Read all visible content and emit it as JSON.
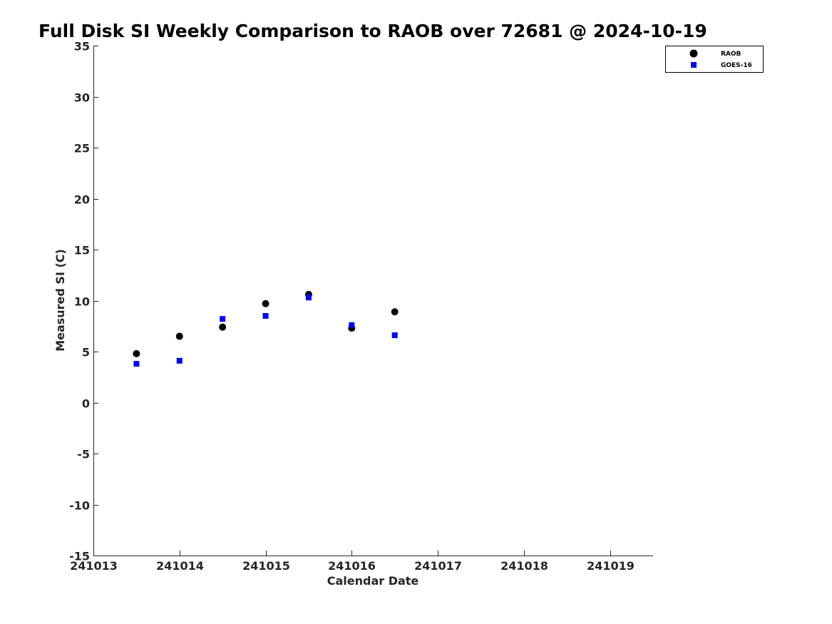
{
  "chart_data": {
    "type": "scatter",
    "title": "Full Disk SI Weekly Comparison to RAOB over 72681 @ 2024-10-19",
    "xlabel": "Calendar Date",
    "ylabel": "Measured SI (C)",
    "xlim": [
      "2024-10-13 00:00",
      "2024-10-19 12:00"
    ],
    "ylim": [
      -15,
      35
    ],
    "x_ticks": [
      {
        "value": "2024-10-13",
        "label": "241013"
      },
      {
        "value": "2024-10-14",
        "label": "241014"
      },
      {
        "value": "2024-10-15",
        "label": "241015"
      },
      {
        "value": "2024-10-16",
        "label": "241016"
      },
      {
        "value": "2024-10-17",
        "label": "241017"
      },
      {
        "value": "2024-10-18",
        "label": "241018"
      },
      {
        "value": "2024-10-19",
        "label": "241019"
      }
    ],
    "y_ticks": [
      35,
      30,
      25,
      20,
      15,
      10,
      5,
      0,
      -5,
      -10,
      -15
    ],
    "grid": false,
    "legend_position": "top-right",
    "series": [
      {
        "name": "RAOB",
        "marker": "circle",
        "color": "#000000",
        "x": [
          "2024-10-13 12:00",
          "2024-10-14 00:00",
          "2024-10-14 12:00",
          "2024-10-15 00:00",
          "2024-10-15 12:00",
          "2024-10-16 00:00",
          "2024-10-16 12:00"
        ],
        "y": [
          4.8,
          6.5,
          7.4,
          9.7,
          10.6,
          7.3,
          8.9
        ]
      },
      {
        "name": "GOES-16",
        "marker": "square",
        "color": "#0000ff",
        "x": [
          "2024-10-13 12:00",
          "2024-10-14 00:00",
          "2024-10-14 12:00",
          "2024-10-15 00:00",
          "2024-10-15 12:00",
          "2024-10-16 00:00",
          "2024-10-16 12:00"
        ],
        "y": [
          3.8,
          4.1,
          8.2,
          8.5,
          10.3,
          7.6,
          6.6
        ]
      }
    ]
  }
}
